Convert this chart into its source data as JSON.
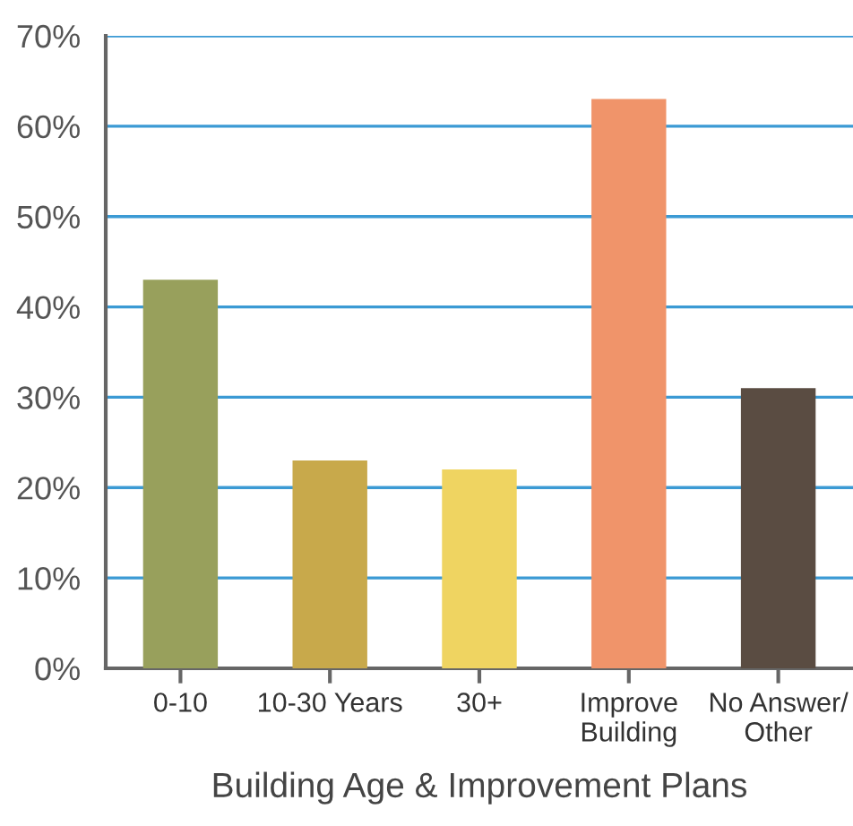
{
  "chart_data": {
    "type": "bar",
    "xlabel": "Building Age & Improvement Plans",
    "categories": [
      "0-10",
      "10-30 Years",
      "30+",
      "Improve\nBuilding",
      "No Answer/\nOther"
    ],
    "values": [
      43,
      23,
      22,
      63,
      31
    ],
    "colors": [
      "#98a05c",
      "#c8a94b",
      "#efd461",
      "#f0946a",
      "#5a4c42"
    ],
    "ylim": [
      0,
      70
    ],
    "yticks": [
      {
        "value": 0,
        "label": "0%"
      },
      {
        "value": 10,
        "label": "10%"
      },
      {
        "value": 20,
        "label": "20%"
      },
      {
        "value": 30,
        "label": "30%"
      },
      {
        "value": 40,
        "label": "40%"
      },
      {
        "value": 50,
        "label": "50%"
      },
      {
        "value": 60,
        "label": "60%"
      },
      {
        "value": 70,
        "label": "70%"
      }
    ],
    "grid": "y"
  }
}
